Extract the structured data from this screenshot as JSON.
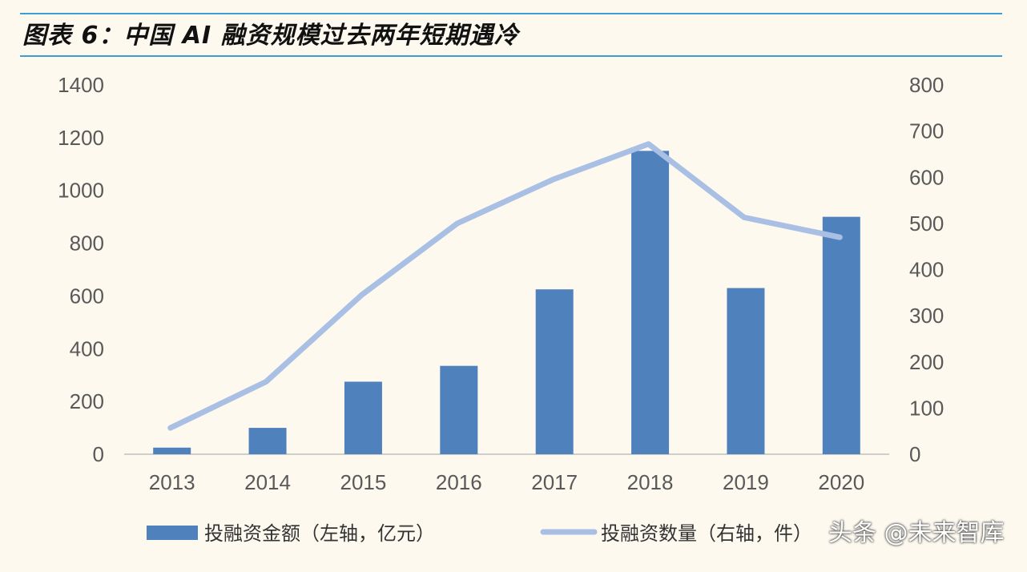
{
  "title": "图表 6：中国 AI 融资规模过去两年短期遇冷",
  "watermark": "头条 @未来智库",
  "colors": {
    "bar": "#4f81bd",
    "line": "#a9bfe3",
    "rule": "#3b9fd6",
    "axis": "#bfbfbf"
  },
  "chart_data": {
    "type": "bar",
    "categories": [
      "2013",
      "2014",
      "2015",
      "2016",
      "2017",
      "2018",
      "2019",
      "2020"
    ],
    "series": [
      {
        "name": "投融资金额（左轴，亿元）",
        "type": "bar",
        "axis": "left",
        "values": [
          25,
          100,
          275,
          335,
          625,
          1150,
          630,
          900
        ]
      },
      {
        "name": "投融资数量（右轴，件）",
        "type": "line",
        "axis": "right",
        "values": [
          57,
          157,
          345,
          500,
          595,
          672,
          513,
          470
        ]
      }
    ],
    "y_left": {
      "min": 0,
      "max": 1400,
      "ticks": [
        "0",
        "200",
        "400",
        "600",
        "800",
        "1000",
        "1200",
        "1400"
      ]
    },
    "y_right": {
      "min": 0,
      "max": 800,
      "ticks": [
        "0",
        "100",
        "200",
        "300",
        "400",
        "500",
        "600",
        "700",
        "800"
      ]
    },
    "grid": false,
    "legend": "bottom"
  }
}
